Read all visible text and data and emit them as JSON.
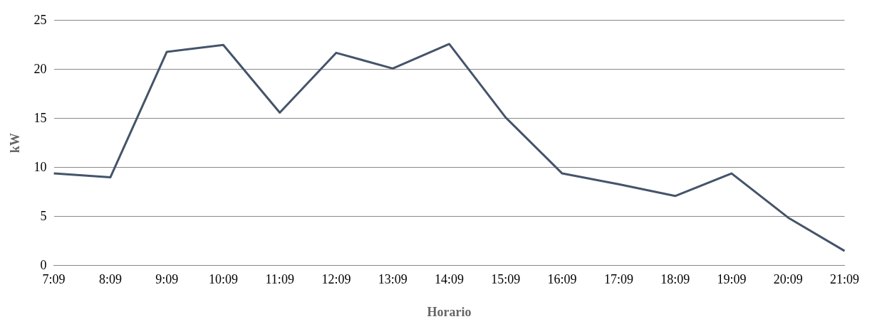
{
  "chart_data": {
    "type": "line",
    "xlabel": "Horario",
    "ylabel": "kW",
    "categories": [
      "7:09",
      "8:09",
      "9:09",
      "10:09",
      "11:09",
      "12:09",
      "13:09",
      "14:09",
      "15:09",
      "16:09",
      "17:09",
      "18:09",
      "19:09",
      "20:09",
      "21:09"
    ],
    "series": [
      {
        "color": "#44546a",
        "values": [
          9.4,
          9.0,
          21.8,
          22.5,
          15.6,
          21.7,
          20.1,
          22.6,
          15.1,
          9.4,
          8.3,
          7.1,
          9.4,
          4.9,
          1.5
        ]
      }
    ],
    "ylim": [
      0,
      25
    ],
    "yticks": [
      0,
      5,
      10,
      15,
      20,
      25
    ],
    "grid": "y",
    "legend": false,
    "marker": "none",
    "line_style": "solid"
  }
}
